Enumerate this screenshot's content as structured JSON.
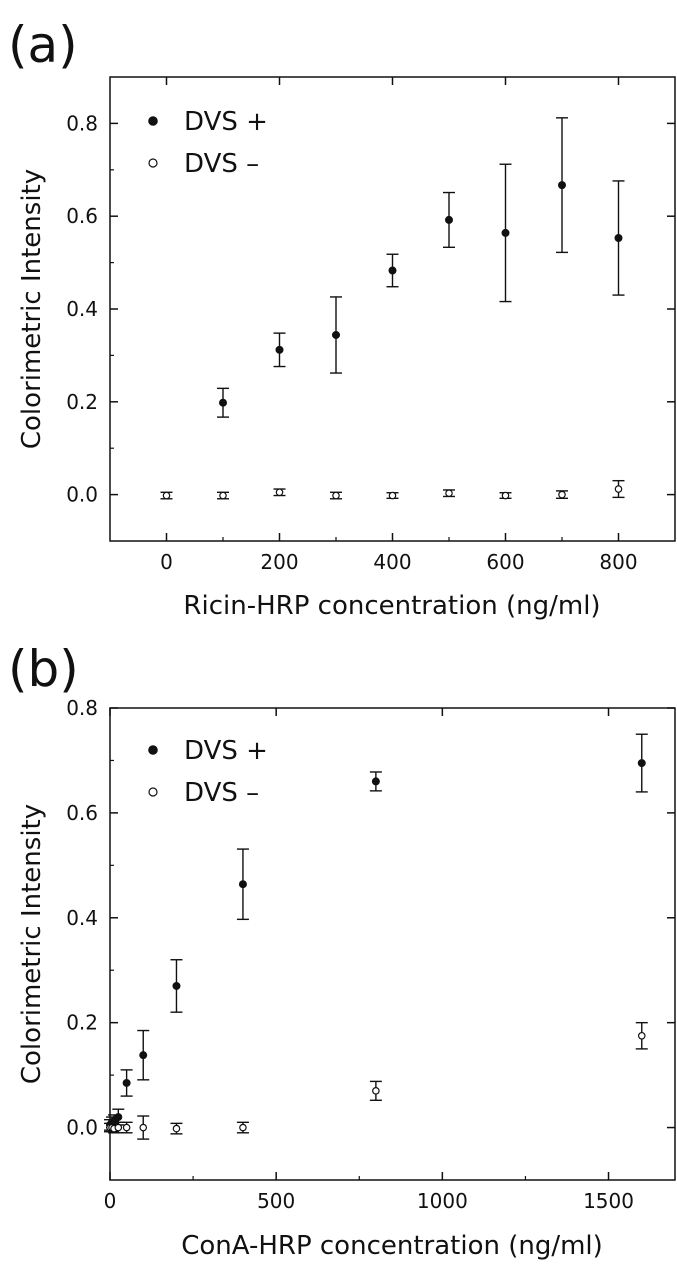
{
  "chart_data": [
    {
      "type": "scatter",
      "panel_label": "(a)",
      "xlabel": "Ricin-HRP concentration (ng/ml)",
      "ylabel": "Colorimetric Intensity",
      "xlim": [
        -100,
        900
      ],
      "ylim": [
        -0.1,
        0.9
      ],
      "xticks": [
        0,
        200,
        400,
        600,
        800
      ],
      "yticks": [
        0.0,
        0.2,
        0.4,
        0.6,
        0.8
      ],
      "x_tick_labels": [
        "0",
        "200",
        "400",
        "600",
        "800"
      ],
      "y_tick_labels": [
        "0.0",
        "0.2",
        "0.4",
        "0.6",
        "0.8"
      ],
      "grid": false,
      "legend_position": "top-left",
      "series": [
        {
          "name": "DVS +",
          "marker": "filled",
          "x": [
            100,
            200,
            300,
            400,
            500,
            600,
            700,
            800
          ],
          "y": [
            0.198,
            0.312,
            0.344,
            0.483,
            0.592,
            0.564,
            0.667,
            0.553
          ],
          "err": [
            0.031,
            0.036,
            0.082,
            0.035,
            0.059,
            0.148,
            0.145,
            0.123
          ]
        },
        {
          "name": "DVS –",
          "marker": "open",
          "x": [
            0,
            100,
            200,
            300,
            400,
            500,
            600,
            700,
            800
          ],
          "y": [
            -0.002,
            -0.002,
            0.005,
            -0.002,
            -0.002,
            0.003,
            -0.002,
            0.0,
            0.012
          ],
          "err": [
            0.007,
            0.007,
            0.007,
            0.007,
            0.006,
            0.007,
            0.006,
            0.008,
            0.018
          ]
        }
      ]
    },
    {
      "type": "scatter",
      "panel_label": "(b)",
      "xlabel": "ConA-HRP concentration (ng/ml)",
      "ylabel": "Colorimetric Intensity",
      "xlim": [
        0,
        1700
      ],
      "ylim": [
        -0.1,
        0.8
      ],
      "xticks": [
        0,
        500,
        1000,
        1500
      ],
      "yticks": [
        0.0,
        0.2,
        0.4,
        0.6,
        0.8
      ],
      "x_tick_labels": [
        "0",
        "500",
        "1000",
        "1500"
      ],
      "y_tick_labels": [
        "0.0",
        "0.2",
        "0.4",
        "0.6",
        "0.8"
      ],
      "grid": false,
      "legend_position": "top-left",
      "series": [
        {
          "name": "DVS +",
          "marker": "filled",
          "x": [
            0,
            6,
            12,
            25,
            50,
            100,
            200,
            400,
            800,
            1600
          ],
          "y": [
            0.005,
            0.01,
            0.012,
            0.02,
            0.085,
            0.138,
            0.27,
            0.464,
            0.66,
            0.695
          ],
          "err": [
            0.01,
            0.01,
            0.012,
            0.015,
            0.025,
            0.047,
            0.05,
            0.067,
            0.018,
            0.055
          ]
        },
        {
          "name": "DVS –",
          "marker": "open",
          "x": [
            0,
            6,
            12,
            25,
            50,
            100,
            200,
            400,
            800,
            1600
          ],
          "y": [
            0.0,
            0.0,
            -0.002,
            0.0,
            0.0,
            0.0,
            -0.002,
            0.0,
            0.07,
            0.175
          ],
          "err": [
            0.008,
            0.008,
            0.008,
            0.01,
            0.01,
            0.022,
            0.01,
            0.01,
            0.018,
            0.025
          ]
        }
      ]
    }
  ]
}
